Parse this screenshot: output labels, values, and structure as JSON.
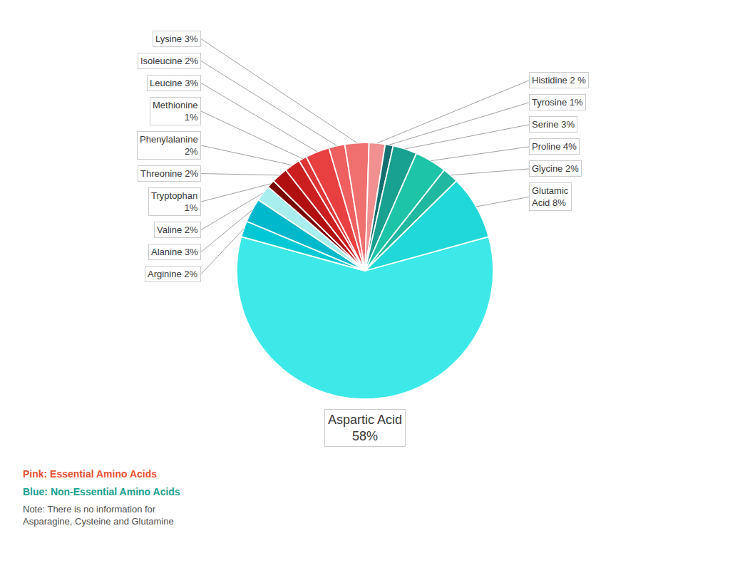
{
  "chart_data": {
    "type": "pie",
    "categories": [
      "Aspartic Acid\n58%",
      "Arginine 2%",
      "Alanine 3%",
      "Valine 2%",
      "Tryptophan\n1%",
      "Threonine 2%",
      "Phenylalanine\n2%",
      "Methionine\n1%",
      "Leucine 3%",
      "Isoleucine 2%",
      "Lysine 3%",
      "Histidine 2 %",
      "Tyrosine 1%",
      "Serine 3%",
      "Proline 4%",
      "Glycine 2%",
      "Glutamic\nAcid 8%"
    ],
    "values": [
      58,
      2,
      3,
      2,
      1,
      2,
      2,
      1,
      3,
      2,
      3,
      2,
      1,
      3,
      4,
      2,
      8
    ],
    "colors": [
      "#3DE8E8",
      "#00C8D4",
      "#00B8CC",
      "#A8EEEE",
      "#7A0000",
      "#B01010",
      "#CC2020",
      "#DD3535",
      "#E84040",
      "#EE6060",
      "#F07070",
      "#F09090",
      "#147070",
      "#18A090",
      "#1EC4A8",
      "#20B8A0",
      "#20D8D8"
    ],
    "annotations": [
      {
        "text": "Pink: Essential Amino Acids",
        "color": "#E85030"
      },
      {
        "text": "Blue: Non-Essential Amino Acids",
        "color": "#18A090"
      },
      {
        "text": "Note: There is no information for\nAsparagine, Cysteine and Glutamine"
      }
    ]
  }
}
